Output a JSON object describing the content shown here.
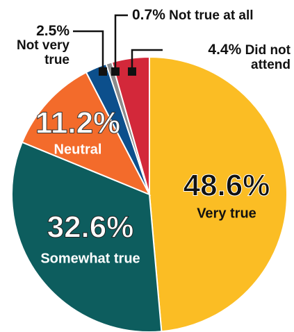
{
  "chart_data": {
    "type": "pie",
    "categories": [
      "Very true",
      "Somewhat true",
      "Neutral",
      "Not very true",
      "Not true at all",
      "Did not attend"
    ],
    "values": [
      48.6,
      32.6,
      11.2,
      2.5,
      0.7,
      4.4
    ],
    "value_labels": [
      "48.6%",
      "32.6%",
      "11.2%",
      "2.5%",
      "0.7%",
      "4.4%"
    ],
    "colors": [
      "#fbbd24",
      "#0d5d5e",
      "#f36b2b",
      "#0c4f8c",
      "#8c8c8c",
      "#d3283a"
    ]
  }
}
